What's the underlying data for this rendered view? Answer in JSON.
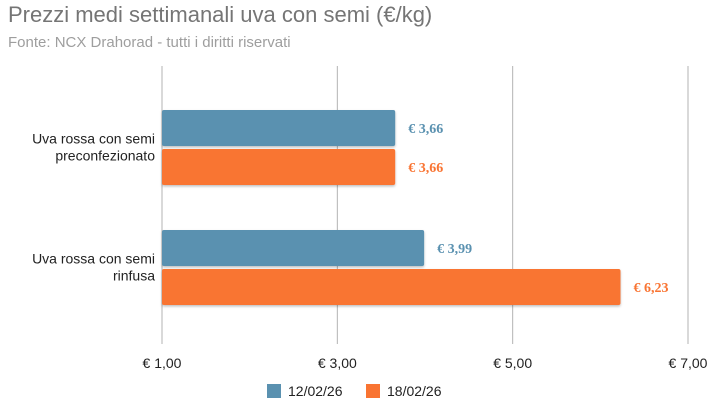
{
  "chart_data": {
    "type": "bar",
    "orientation": "horizontal",
    "title": "Prezzi medi settimanali uva con semi (€/kg)",
    "subtitle": "Fonte: NCX Drahorad - tutti i diritti riservati",
    "categories": [
      [
        "Uva rossa con semi",
        "preconfezionato"
      ],
      [
        "Uva rossa con semi",
        "rinfusa"
      ]
    ],
    "series": [
      {
        "name": "12/02/26",
        "values": [
          3.66,
          3.99
        ],
        "labels": [
          "€ 3,66",
          "€ 3,99"
        ],
        "color": "#5a91b0"
      },
      {
        "name": "18/02/26",
        "values": [
          3.66,
          6.23
        ],
        "labels": [
          "€ 3,66",
          "€ 6,23"
        ],
        "color": "#f97432"
      }
    ],
    "xlim": [
      1,
      7
    ],
    "ticks": [
      1,
      3,
      5,
      7
    ],
    "tick_labels": [
      "€ 1,00",
      "€ 3,00",
      "€ 5,00",
      "€ 7,00"
    ],
    "grid": true,
    "legend_position": "bottom"
  }
}
